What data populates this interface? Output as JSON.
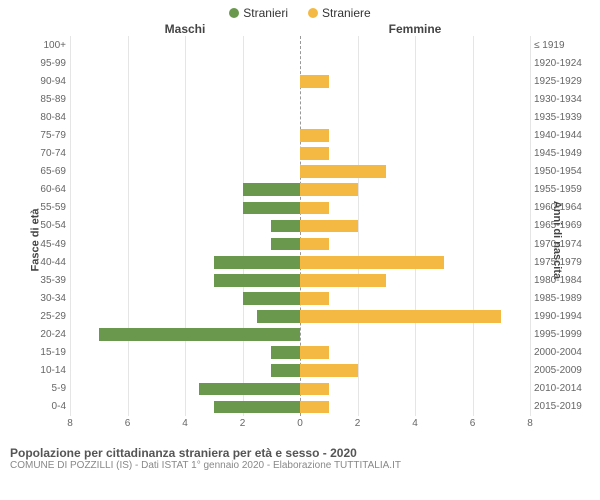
{
  "chart": {
    "type": "population-pyramid",
    "legend": [
      {
        "label": "Stranieri",
        "color": "#6a994e"
      },
      {
        "label": "Straniere",
        "color": "#f4b942"
      }
    ],
    "header_left": "Maschi",
    "header_right": "Femmine",
    "ylabel_left": "Fasce di età",
    "ylabel_right": "Anni di nascita",
    "xmax": 8,
    "xticks": [
      8,
      6,
      4,
      2,
      0,
      2,
      4,
      6,
      8
    ],
    "grid_color": "#e5e5e5",
    "center_line_color": "#999999",
    "center_line_dash": "3,3",
    "bar_color_left": "#6a994e",
    "bar_color_right": "#f4b942",
    "background_color": "#ffffff",
    "rows": [
      {
        "age": "100+",
        "birth": "≤ 1919",
        "m": 0,
        "f": 0
      },
      {
        "age": "95-99",
        "birth": "1920-1924",
        "m": 0,
        "f": 0
      },
      {
        "age": "90-94",
        "birth": "1925-1929",
        "m": 0,
        "f": 1
      },
      {
        "age": "85-89",
        "birth": "1930-1934",
        "m": 0,
        "f": 0
      },
      {
        "age": "80-84",
        "birth": "1935-1939",
        "m": 0,
        "f": 0
      },
      {
        "age": "75-79",
        "birth": "1940-1944",
        "m": 0,
        "f": 1
      },
      {
        "age": "70-74",
        "birth": "1945-1949",
        "m": 0,
        "f": 1
      },
      {
        "age": "65-69",
        "birth": "1950-1954",
        "m": 0,
        "f": 3
      },
      {
        "age": "60-64",
        "birth": "1955-1959",
        "m": 2,
        "f": 2
      },
      {
        "age": "55-59",
        "birth": "1960-1964",
        "m": 2,
        "f": 1
      },
      {
        "age": "50-54",
        "birth": "1965-1969",
        "m": 1,
        "f": 2
      },
      {
        "age": "45-49",
        "birth": "1970-1974",
        "m": 1,
        "f": 1
      },
      {
        "age": "40-44",
        "birth": "1975-1979",
        "m": 3,
        "f": 5
      },
      {
        "age": "35-39",
        "birth": "1980-1984",
        "m": 3,
        "f": 3
      },
      {
        "age": "30-34",
        "birth": "1985-1989",
        "m": 2,
        "f": 1
      },
      {
        "age": "25-29",
        "birth": "1990-1994",
        "m": 1.5,
        "f": 7
      },
      {
        "age": "20-24",
        "birth": "1995-1999",
        "m": 7,
        "f": 0
      },
      {
        "age": "15-19",
        "birth": "2000-2004",
        "m": 1,
        "f": 1
      },
      {
        "age": "10-14",
        "birth": "2005-2009",
        "m": 1,
        "f": 2
      },
      {
        "age": "5-9",
        "birth": "2010-2014",
        "m": 3.5,
        "f": 1
      },
      {
        "age": "0-4",
        "birth": "2015-2019",
        "m": 3,
        "f": 1
      }
    ]
  },
  "footer": {
    "title": "Popolazione per cittadinanza straniera per età e sesso - 2020",
    "subtitle": "COMUNE DI POZZILLI (IS) - Dati ISTAT 1° gennaio 2020 - Elaborazione TUTTITALIA.IT"
  }
}
